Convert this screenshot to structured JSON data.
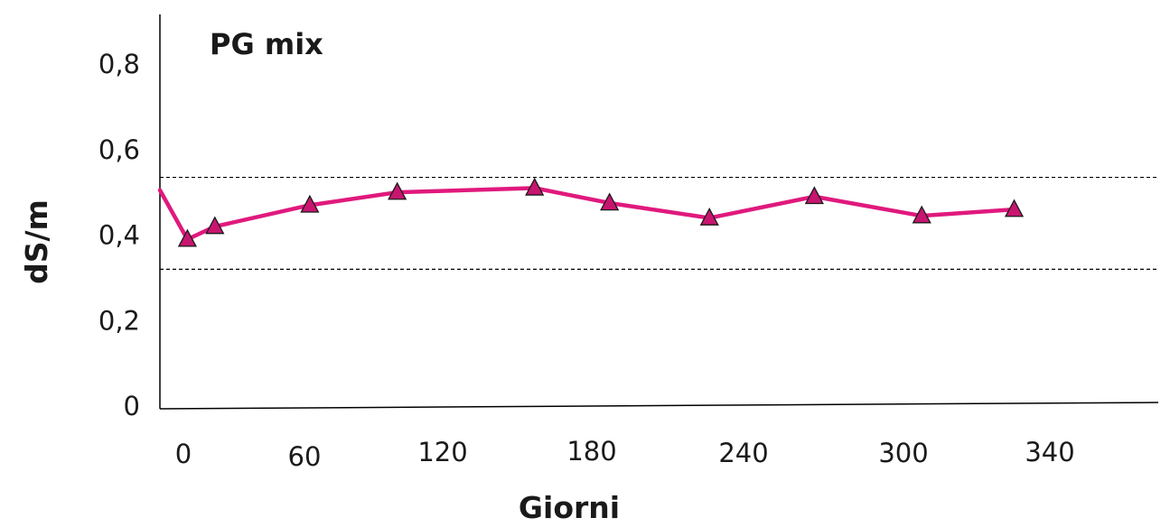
{
  "chart_data": {
    "type": "line",
    "title": "PG mix",
    "xlabel": "Giorni",
    "ylabel": "dS/m",
    "x_tick_labels": [
      "0",
      "60",
      "120",
      "180",
      "240",
      "300",
      "340"
    ],
    "y_tick_labels": [
      "0",
      "0,2",
      "0,4",
      "0,6",
      "0,8"
    ],
    "y_ticks": [
      0,
      0.2,
      0.4,
      0.6,
      0.8
    ],
    "ylim": [
      0,
      0.89
    ],
    "grid": false,
    "reference_lines": [
      0.535,
      0.32
    ],
    "series": [
      {
        "marker": "triangle",
        "color": "#e0197d",
        "marker_color": "#c8156f",
        "points": [
          {
            "x": 0,
            "y": 0.505
          },
          {
            "x": 11,
            "y": 0.39
          },
          {
            "x": 22,
            "y": 0.42
          },
          {
            "x": 60,
            "y": 0.47
          },
          {
            "x": 95,
            "y": 0.5
          },
          {
            "x": 150,
            "y": 0.51
          },
          {
            "x": 180,
            "y": 0.475
          },
          {
            "x": 220,
            "y": 0.44
          },
          {
            "x": 262,
            "y": 0.49
          },
          {
            "x": 305,
            "y": 0.445
          },
          {
            "x": 342,
            "y": 0.46
          }
        ]
      }
    ]
  }
}
